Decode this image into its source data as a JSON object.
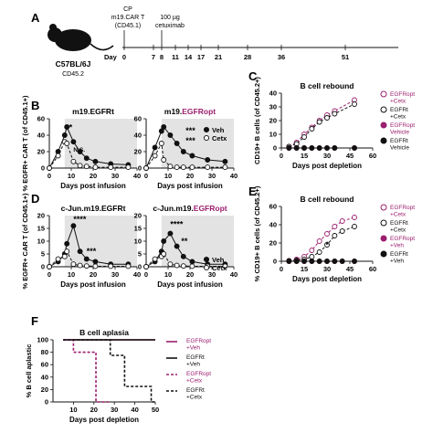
{
  "colors": {
    "black": "#111111",
    "magenta": "#9b1f6e",
    "shade": "#e3e3e3",
    "grey": "#888888"
  },
  "panel_A": {
    "letter": "A",
    "mouse_strain": "C57BL/6J",
    "mouse_marker": "CD45.2",
    "cp_label": "CP",
    "cart_label": "m19.CAR T",
    "cart_sub": "(CD45.1)",
    "dose_label": "100 µg",
    "drug_label": "cetuximab",
    "day_label": "Day",
    "days": [
      0,
      7,
      8,
      11,
      14,
      17,
      21,
      28,
      36,
      51
    ]
  },
  "panel_letters": {
    "B": "B",
    "C": "C",
    "D": "D",
    "E": "E",
    "F": "F"
  },
  "chart_data": [
    {
      "id": "B1",
      "type": "line",
      "title": "m19.EGFRt",
      "ylabel": "% EGFR+ CAR T (of CD45.1+)",
      "xlabel": "Days post infusion",
      "xlim": [
        0,
        40
      ],
      "ylim": [
        0,
        60
      ],
      "xticks": [
        0,
        10,
        20,
        30,
        40
      ],
      "yticks": [
        0,
        20,
        40,
        60
      ],
      "x": [
        0,
        4,
        7,
        8,
        11,
        14,
        17,
        21,
        28,
        36
      ],
      "series": [
        {
          "name": "Veh",
          "values": [
            0,
            20,
            40,
            50,
            32,
            20,
            12,
            8,
            5,
            4
          ]
        },
        {
          "name": "Cetx",
          "values": [
            0,
            15,
            32,
            30,
            8,
            3,
            2,
            1,
            1,
            1
          ]
        }
      ],
      "annotations": [
        {
          "text": "*",
          "x": 9,
          "y": 46
        },
        {
          "text": "N.S.",
          "x": 11,
          "y": 20
        }
      ]
    },
    {
      "id": "B2",
      "type": "line",
      "title_prefix": "m19.",
      "title_highlight": "EGFRopt",
      "xlabel": "Days post infusion",
      "xlim": [
        0,
        40
      ],
      "ylim": [
        0,
        60
      ],
      "xticks": [
        0,
        10,
        20,
        30,
        40
      ],
      "yticks": [
        0,
        20,
        40,
        60
      ],
      "x": [
        0,
        4,
        7,
        8,
        11,
        14,
        17,
        21,
        28,
        36
      ],
      "series": [
        {
          "name": "Veh",
          "values": [
            0,
            25,
            45,
            50,
            40,
            30,
            20,
            15,
            10,
            8
          ]
        },
        {
          "name": "Cetx",
          "values": [
            0,
            15,
            30,
            10,
            2,
            1,
            1,
            1,
            1,
            1
          ]
        }
      ],
      "legend": [
        "Veh",
        "Cetx"
      ],
      "annotations": [
        {
          "text": "***",
          "x": 18,
          "y": 42
        },
        {
          "text": "***",
          "x": 18,
          "y": 30
        }
      ]
    },
    {
      "id": "C",
      "type": "line",
      "title": "B cell rebound",
      "ylabel": "CD19+ B cells (of CD45.2+)",
      "xlabel": "Days post depletion",
      "xlim": [
        0,
        60
      ],
      "ylim": [
        0,
        40
      ],
      "xticks": [
        0,
        15,
        30,
        45,
        60
      ],
      "yticks": [
        0,
        10,
        20,
        30,
        40
      ],
      "x": [
        5,
        10,
        15,
        20,
        25,
        30,
        35,
        48
      ],
      "series": [
        {
          "name": "EGFRopt +Cetx",
          "values": [
            1,
            4,
            10,
            15,
            20,
            24,
            27,
            35
          ]
        },
        {
          "name": "EGFRt +Cetx",
          "values": [
            1,
            3,
            8,
            14,
            19,
            22,
            25,
            32
          ]
        },
        {
          "name": "EGFRopt Vehicle",
          "values": [
            0,
            0,
            0,
            0,
            0,
            0,
            0,
            0
          ]
        },
        {
          "name": "EGFRt Vehicle",
          "values": [
            0,
            0,
            0,
            0,
            0,
            0,
            0,
            0
          ]
        }
      ],
      "legend": [
        {
          "lines": [
            "EGFRopt",
            "+Cetx"
          ]
        },
        {
          "lines": [
            "EGFRt",
            "+Cetx"
          ]
        },
        {
          "lines": [
            "EGFRopt",
            "Vehicle"
          ]
        },
        {
          "lines": [
            "EGFRt",
            "Vehicle"
          ]
        }
      ]
    },
    {
      "id": "D1",
      "type": "line",
      "title": "c-Jun.m19.EGFRt",
      "ylabel": "% EGFR+ CAR T (of CD45.1+)",
      "xlabel": "Days post infusion",
      "xlim": [
        0,
        40
      ],
      "ylim": [
        0,
        20
      ],
      "xticks": [
        0,
        10,
        20,
        30,
        40
      ],
      "yticks": [
        0,
        5,
        10,
        15,
        20
      ],
      "x": [
        0,
        4,
        7,
        8,
        11,
        14,
        17,
        21,
        28,
        36
      ],
      "series": [
        {
          "name": "Veh",
          "values": [
            0,
            2,
            5,
            9,
            16,
            6,
            3,
            2,
            1,
            1
          ]
        },
        {
          "name": "Cetx",
          "values": [
            0,
            3,
            4,
            6,
            1,
            0.5,
            0.3,
            0.2,
            0.2,
            0.2
          ]
        }
      ],
      "annotations": [
        {
          "text": "****",
          "x": 11,
          "y": 17.5
        },
        {
          "text": "***",
          "x": 17,
          "y": 5
        }
      ]
    },
    {
      "id": "D2",
      "type": "line",
      "title_prefix": "c-Jun.m19.",
      "title_highlight": "EGFRopt",
      "xlabel": "Days post infusion",
      "xlim": [
        0,
        40
      ],
      "ylim": [
        0,
        20
      ],
      "xticks": [
        0,
        10,
        20,
        30,
        40
      ],
      "yticks": [
        0,
        5,
        10,
        15,
        20
      ],
      "x": [
        0,
        4,
        7,
        8,
        11,
        14,
        17,
        21,
        28,
        36
      ],
      "series": [
        {
          "name": "Veh",
          "values": [
            0,
            2,
            6,
            10,
            13,
            8,
            4,
            2,
            1,
            1
          ]
        },
        {
          "name": "Cetx",
          "values": [
            0,
            3,
            4,
            5,
            1,
            0.5,
            0.3,
            0.2,
            0.2,
            0.2
          ]
        }
      ],
      "legend": [
        "Veh",
        "Cetx"
      ],
      "annotations": [
        {
          "text": "****",
          "x": 11,
          "y": 15.5
        },
        {
          "text": "**",
          "x": 16,
          "y": 9
        }
      ]
    },
    {
      "id": "E",
      "type": "line",
      "title": "B cell rebound",
      "ylabel": "% CD19+ B cells (of CD45.2+)",
      "xlabel": "Days post depletion",
      "xlim": [
        0,
        60
      ],
      "ylim": [
        0,
        60
      ],
      "xticks": [
        0,
        15,
        30,
        45,
        60
      ],
      "yticks": [
        0,
        20,
        40,
        60
      ],
      "x": [
        5,
        10,
        15,
        20,
        25,
        30,
        35,
        40,
        48
      ],
      "series": [
        {
          "name": "EGFRopt +Cetx",
          "values": [
            0.5,
            2,
            5,
            12,
            22,
            30,
            38,
            44,
            48
          ]
        },
        {
          "name": "EGFRt +Cetx",
          "values": [
            0.5,
            1,
            2,
            5,
            10,
            18,
            28,
            33,
            38
          ]
        },
        {
          "name": "EGFRopt +Veh",
          "values": [
            0,
            0,
            0,
            0,
            0,
            0,
            0,
            0,
            0
          ]
        },
        {
          "name": "EGFRt +Veh",
          "values": [
            0,
            0,
            0,
            0,
            0,
            0,
            0,
            0,
            0
          ]
        }
      ],
      "legend": [
        {
          "lines": [
            "EGFRopt",
            "+Cetx"
          ]
        },
        {
          "lines": [
            "EGFRt",
            "+Cetx"
          ]
        },
        {
          "lines": [
            "EGFRopt",
            "+Veh"
          ]
        },
        {
          "lines": [
            "EGFRt",
            "+Veh"
          ]
        }
      ],
      "annotations": [
        {
          "text": "*",
          "x": 29,
          "y": 15
        }
      ]
    },
    {
      "id": "F",
      "type": "line",
      "title": "B cell aplasia",
      "ylabel": "% B cell aplastic",
      "xlabel": "Days post depletion",
      "xlim": [
        0,
        50
      ],
      "ylim": [
        0,
        100
      ],
      "xticks": [
        10,
        20,
        30,
        40,
        50
      ],
      "yticks": [
        0,
        20,
        40,
        60,
        80,
        100
      ],
      "series": [
        {
          "name": "EGFRopt +Veh",
          "steps": [
            [
              5,
              100
            ],
            [
              50,
              100
            ]
          ]
        },
        {
          "name": "EGFRt +Veh",
          "steps": [
            [
              5,
              100
            ],
            [
              50,
              100
            ]
          ]
        },
        {
          "name": "EGFRopt +Cetx",
          "steps": [
            [
              5,
              100
            ],
            [
              10,
              100
            ],
            [
              10,
              80
            ],
            [
              21,
              80
            ],
            [
              21,
              0
            ],
            [
              28,
              0
            ]
          ]
        },
        {
          "name": "EGFRt +Cetx",
          "steps": [
            [
              5,
              100
            ],
            [
              28,
              100
            ],
            [
              28,
              75
            ],
            [
              35,
              75
            ],
            [
              35,
              25
            ],
            [
              48,
              25
            ],
            [
              48,
              0
            ],
            [
              50,
              0
            ]
          ]
        }
      ],
      "legend": [
        {
          "lines": [
            "EGFRopt",
            "+Veh"
          ]
        },
        {
          "lines": [
            "EGFRt",
            "+Veh"
          ]
        },
        {
          "lines": [
            "EGFRopt",
            "+Cetx"
          ]
        },
        {
          "lines": [
            "EGFRt",
            "+Cetx"
          ]
        }
      ]
    }
  ]
}
